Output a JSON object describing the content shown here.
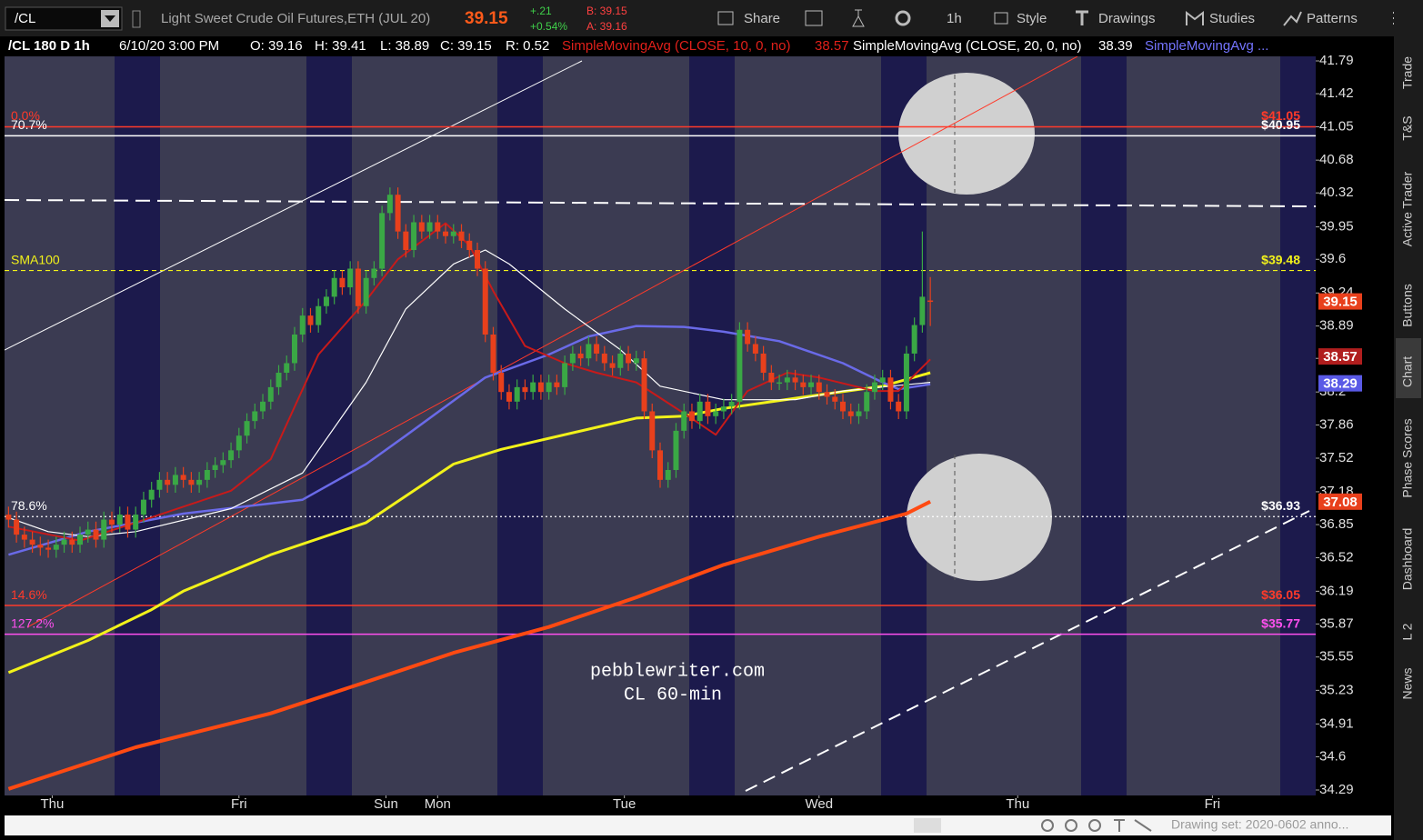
{
  "toolbar": {
    "symbol": "/CL",
    "description": "Light Sweet Crude Oil Futures,ETH (JUL 20)",
    "last": "39.15",
    "change": "+.21",
    "change_pct": "+0.54%",
    "bid": "B: 39.15",
    "ask": "A: 39.16",
    "buttons": [
      "Share",
      "1h",
      "Style",
      "Drawings",
      "Studies",
      "Patterns"
    ]
  },
  "info_bar": {
    "title": "/CL 180 D 1h",
    "datetime": "6/10/20 3:00 PM",
    "fields": [
      "O: 39.16",
      "H: 39.41",
      "L: 38.89",
      "C: 39.15",
      "R: 0.52"
    ],
    "studies": [
      {
        "label": "SimpleMovingAvg (CLOSE, 10, 0, no)",
        "value": "38.57"
      },
      {
        "label": "SimpleMovingAvg (CLOSE, 20, 0, no)",
        "value": "38.39"
      },
      {
        "label": "SimpleMovingAvg ..."
      }
    ]
  },
  "chart_data": {
    "type": "candlestick",
    "log_scale": true,
    "up_color": "#3aa845",
    "down_color": "#e8401c",
    "open": [
      36.95,
      36.9,
      36.75,
      36.7,
      36.65,
      36.62,
      36.6,
      36.65,
      36.7,
      36.65,
      36.75,
      36.8,
      36.7,
      36.9,
      36.85,
      36.95,
      36.8,
      36.95,
      37.1,
      37.2,
      37.3,
      37.25,
      37.35,
      37.3,
      37.25,
      37.3,
      37.4,
      37.45,
      37.5,
      37.6,
      37.75,
      37.9,
      38.0,
      38.1,
      38.25,
      38.4,
      38.5,
      38.8,
      39.0,
      38.9,
      39.1,
      39.2,
      39.4,
      39.3,
      39.5,
      39.1,
      39.4,
      39.5,
      40.1,
      40.3,
      39.9,
      39.7,
      40.0,
      39.9,
      40.0,
      39.9,
      39.85,
      39.9,
      39.8,
      39.7,
      39.5,
      38.8,
      38.4,
      38.2,
      38.1,
      38.25,
      38.2,
      38.3,
      38.2,
      38.3,
      38.25,
      38.5,
      38.6,
      38.55,
      38.7,
      38.6,
      38.5,
      38.45,
      38.6,
      38.5,
      38.55,
      38.0,
      37.6,
      37.3,
      37.4,
      37.8,
      38.0,
      37.9,
      38.1,
      37.95,
      38.0,
      38.05,
      38.1,
      38.85,
      38.7,
      38.6,
      38.4,
      38.3,
      38.3,
      38.35,
      38.3,
      38.25,
      38.3,
      38.2,
      38.15,
      38.1,
      38.0,
      37.95,
      38.0,
      38.2,
      38.3,
      38.35,
      38.1,
      38.0,
      38.6,
      38.9,
      39.16
    ],
    "high": [
      37.03,
      36.98,
      36.83,
      36.78,
      36.73,
      36.7,
      36.73,
      36.78,
      36.78,
      36.83,
      36.88,
      36.88,
      36.98,
      36.98,
      37.03,
      37.03,
      37.03,
      37.18,
      37.28,
      37.38,
      37.38,
      37.43,
      37.43,
      37.38,
      37.38,
      37.48,
      37.53,
      37.58,
      37.68,
      37.83,
      37.98,
      38.08,
      38.18,
      38.33,
      38.48,
      38.58,
      38.88,
      39.08,
      39.08,
      39.18,
      39.28,
      39.48,
      39.48,
      39.58,
      39.58,
      39.48,
      39.58,
      40.18,
      40.38,
      40.38,
      39.98,
      40.08,
      40.08,
      40.08,
      40.08,
      39.98,
      39.98,
      39.98,
      39.88,
      39.78,
      39.58,
      38.88,
      38.48,
      38.28,
      38.33,
      38.33,
      38.38,
      38.38,
      38.38,
      38.38,
      38.58,
      38.68,
      38.68,
      38.78,
      38.78,
      38.68,
      38.58,
      38.68,
      38.68,
      38.63,
      38.63,
      38.08,
      37.68,
      37.48,
      37.88,
      38.08,
      38.08,
      38.18,
      38.18,
      38.08,
      38.13,
      38.18,
      38.93,
      38.93,
      38.78,
      38.68,
      38.48,
      38.38,
      38.43,
      38.43,
      38.38,
      38.38,
      38.38,
      38.28,
      38.23,
      38.18,
      38.08,
      38.08,
      38.28,
      38.38,
      38.43,
      38.43,
      38.18,
      38.68,
      38.98,
      39.9,
      39.41
    ],
    "low": [
      36.82,
      36.67,
      36.62,
      36.57,
      36.54,
      36.52,
      36.52,
      36.57,
      36.57,
      36.57,
      36.67,
      36.62,
      36.62,
      36.77,
      36.77,
      36.72,
      36.72,
      36.87,
      37.02,
      37.12,
      37.17,
      37.17,
      37.22,
      37.17,
      37.17,
      37.22,
      37.32,
      37.37,
      37.42,
      37.52,
      37.67,
      37.82,
      37.92,
      38.02,
      38.17,
      38.32,
      38.42,
      38.72,
      38.82,
      38.82,
      39.02,
      39.12,
      39.22,
      39.22,
      39.02,
      39.02,
      39.32,
      39.42,
      40.02,
      39.82,
      39.62,
      39.62,
      39.82,
      39.82,
      39.82,
      39.77,
      39.77,
      39.72,
      39.62,
      39.42,
      38.72,
      38.32,
      38.12,
      38.02,
      38.02,
      38.12,
      38.12,
      38.12,
      38.12,
      38.17,
      38.17,
      38.42,
      38.47,
      38.47,
      38.52,
      38.42,
      38.37,
      38.37,
      38.42,
      38.42,
      37.92,
      37.52,
      37.22,
      37.22,
      37.32,
      37.72,
      37.82,
      37.82,
      37.87,
      37.87,
      37.92,
      37.97,
      38.02,
      38.62,
      38.52,
      38.32,
      38.22,
      38.22,
      38.22,
      38.22,
      38.17,
      38.17,
      38.12,
      38.07,
      38.02,
      37.92,
      37.87,
      37.87,
      37.92,
      38.12,
      38.22,
      38.02,
      37.92,
      37.92,
      38.52,
      38.82,
      38.89
    ],
    "close": [
      36.9,
      36.75,
      36.7,
      36.65,
      36.62,
      36.6,
      36.65,
      36.7,
      36.65,
      36.75,
      36.8,
      36.7,
      36.9,
      36.85,
      36.95,
      36.8,
      36.95,
      37.1,
      37.2,
      37.3,
      37.25,
      37.35,
      37.3,
      37.25,
      37.3,
      37.4,
      37.45,
      37.5,
      37.6,
      37.75,
      37.9,
      38.0,
      38.1,
      38.25,
      38.4,
      38.5,
      38.8,
      39.0,
      38.9,
      39.1,
      39.2,
      39.4,
      39.3,
      39.5,
      39.1,
      39.4,
      39.5,
      40.1,
      40.3,
      39.9,
      39.7,
      40.0,
      39.9,
      40.0,
      39.9,
      39.85,
      39.9,
      39.8,
      39.7,
      39.5,
      38.8,
      38.4,
      38.2,
      38.1,
      38.25,
      38.2,
      38.3,
      38.2,
      38.3,
      38.25,
      38.5,
      38.6,
      38.55,
      38.7,
      38.6,
      38.5,
      38.45,
      38.6,
      38.5,
      38.55,
      38.0,
      37.6,
      37.3,
      37.4,
      37.8,
      38.0,
      37.9,
      38.1,
      37.95,
      38.0,
      38.05,
      38.1,
      38.85,
      38.7,
      38.6,
      38.4,
      38.3,
      38.3,
      38.35,
      38.3,
      38.25,
      38.3,
      38.2,
      38.15,
      38.1,
      38.0,
      37.95,
      38.0,
      38.2,
      38.3,
      38.35,
      38.1,
      38.0,
      38.6,
      38.9,
      39.2,
      39.15
    ],
    "series": [
      {
        "color": "#ff4a12",
        "width": 4,
        "x": [
          0,
          16,
          33,
          45,
          56,
          68,
          79,
          90,
          102,
          113,
          116
        ],
        "values": [
          34.3,
          34.69,
          35.01,
          35.31,
          35.59,
          35.84,
          36.13,
          36.45,
          36.73,
          36.96,
          37.08
        ]
      },
      {
        "color": "#f2f21a",
        "width": 3,
        "x": [
          0,
          10,
          18,
          22,
          33,
          45,
          56,
          62,
          79,
          85,
          90,
          102,
          110,
          116
        ],
        "values": [
          35.4,
          35.71,
          36.01,
          36.19,
          36.55,
          36.87,
          37.46,
          37.61,
          37.93,
          37.95,
          38.03,
          38.17,
          38.26,
          38.4
        ]
      },
      {
        "color": "#6a6ae8",
        "width": 2.5,
        "x": [
          0,
          10,
          22,
          37,
          45,
          50,
          60,
          68,
          73,
          79,
          85,
          90,
          97,
          105,
          110,
          112,
          116
        ],
        "values": [
          36.55,
          36.78,
          36.96,
          37.1,
          37.46,
          37.75,
          38.35,
          38.59,
          38.78,
          38.89,
          38.88,
          38.83,
          38.73,
          38.5,
          38.3,
          38.23,
          38.28
        ]
      },
      {
        "color": "#ffffff",
        "width": 1.2,
        "x": [
          0,
          5,
          10,
          16,
          28,
          37,
          45,
          50,
          56,
          60,
          63,
          70,
          77,
          82,
          90,
          99,
          105,
          111,
          116
        ],
        "values": [
          36.92,
          36.78,
          36.73,
          36.78,
          37.01,
          37.37,
          38.3,
          39.07,
          39.55,
          39.7,
          39.55,
          39.07,
          38.64,
          38.26,
          38.12,
          38.12,
          38.21,
          38.26,
          38.3
        ]
      },
      {
        "color": "#c81a1a",
        "width": 2,
        "x": [
          0,
          9,
          16,
          28,
          33,
          39,
          45,
          49,
          55,
          58,
          61,
          65,
          70,
          74,
          79,
          85,
          89,
          93,
          98,
          102,
          109,
          112,
          116
        ],
        "values": [
          36.83,
          36.69,
          36.87,
          37.19,
          37.51,
          38.59,
          39.16,
          39.6,
          39.99,
          39.75,
          39.26,
          38.68,
          38.5,
          38.4,
          38.3,
          37.98,
          37.76,
          38.21,
          38.4,
          38.35,
          38.21,
          38.21,
          38.54
        ]
      }
    ],
    "levels": [
      {
        "name": "0.0%",
        "value": 41.05,
        "value_label": "$41.05",
        "color": "#ff3a2a",
        "line_style": "solid"
      },
      {
        "name": "70.7%",
        "value": 40.95,
        "value_label": "$40.95",
        "color": "#ffffff",
        "line_style": "solid"
      },
      {
        "name": "SMA100",
        "value": 39.48,
        "value_label": "$39.48",
        "color": "#f2f21a",
        "line_style": "dashed"
      },
      {
        "name": "78.6%",
        "value": 36.93,
        "value_label": "$36.93",
        "color": "#ffffff",
        "line_style": "dotted"
      },
      {
        "name": "14.6%",
        "value": 36.05,
        "value_label": "$36.05",
        "color": "#ff3a2a",
        "line_style": "solid"
      },
      {
        "name": "127.2%",
        "value": 35.77,
        "value_label": "$35.77",
        "color": "#ff4ff0",
        "line_style": "solid"
      }
    ],
    "price_badges": [
      {
        "value": 39.15,
        "color": "#e8401c"
      },
      {
        "value": 38.57,
        "color": "#b01e1e"
      },
      {
        "value": 38.29,
        "color": "#5a5ae6"
      },
      {
        "value": 37.08,
        "color": "#e8401c"
      }
    ],
    "xlim": [
      -0.5,
      164.5
    ],
    "xticks": [
      {
        "value": 5.5,
        "label": "Thu"
      },
      {
        "value": 29,
        "label": "Fri"
      },
      {
        "value": 47.5,
        "label": "Sun"
      },
      {
        "value": 54,
        "label": "Mon"
      },
      {
        "value": 77.5,
        "label": "Tue"
      },
      {
        "value": 102,
        "label": "Wed"
      },
      {
        "value": 127,
        "label": "Thu"
      },
      {
        "value": 151.5,
        "label": "Fri"
      }
    ],
    "ylim": [
      34.29,
      41.79
    ],
    "yticks": [
      41.79,
      41.42,
      41.05,
      40.68,
      40.32,
      39.95,
      39.6,
      39.24,
      38.89,
      38.55,
      38.2,
      37.86,
      37.52,
      37.18,
      36.85,
      36.52,
      36.19,
      35.87,
      35.55,
      35.23,
      34.91,
      34.6,
      34.29
    ]
  },
  "watermark": [
    "pebblewriter.com",
    "CL 60-min"
  ],
  "sidebar_tabs": [
    "Trade",
    "T&S",
    "Active Trader",
    "Buttons",
    "Chart",
    "Phase Scores",
    "Dashboard",
    "L 2",
    "News"
  ],
  "status": "Drawing set: 2020-0602 anno..."
}
